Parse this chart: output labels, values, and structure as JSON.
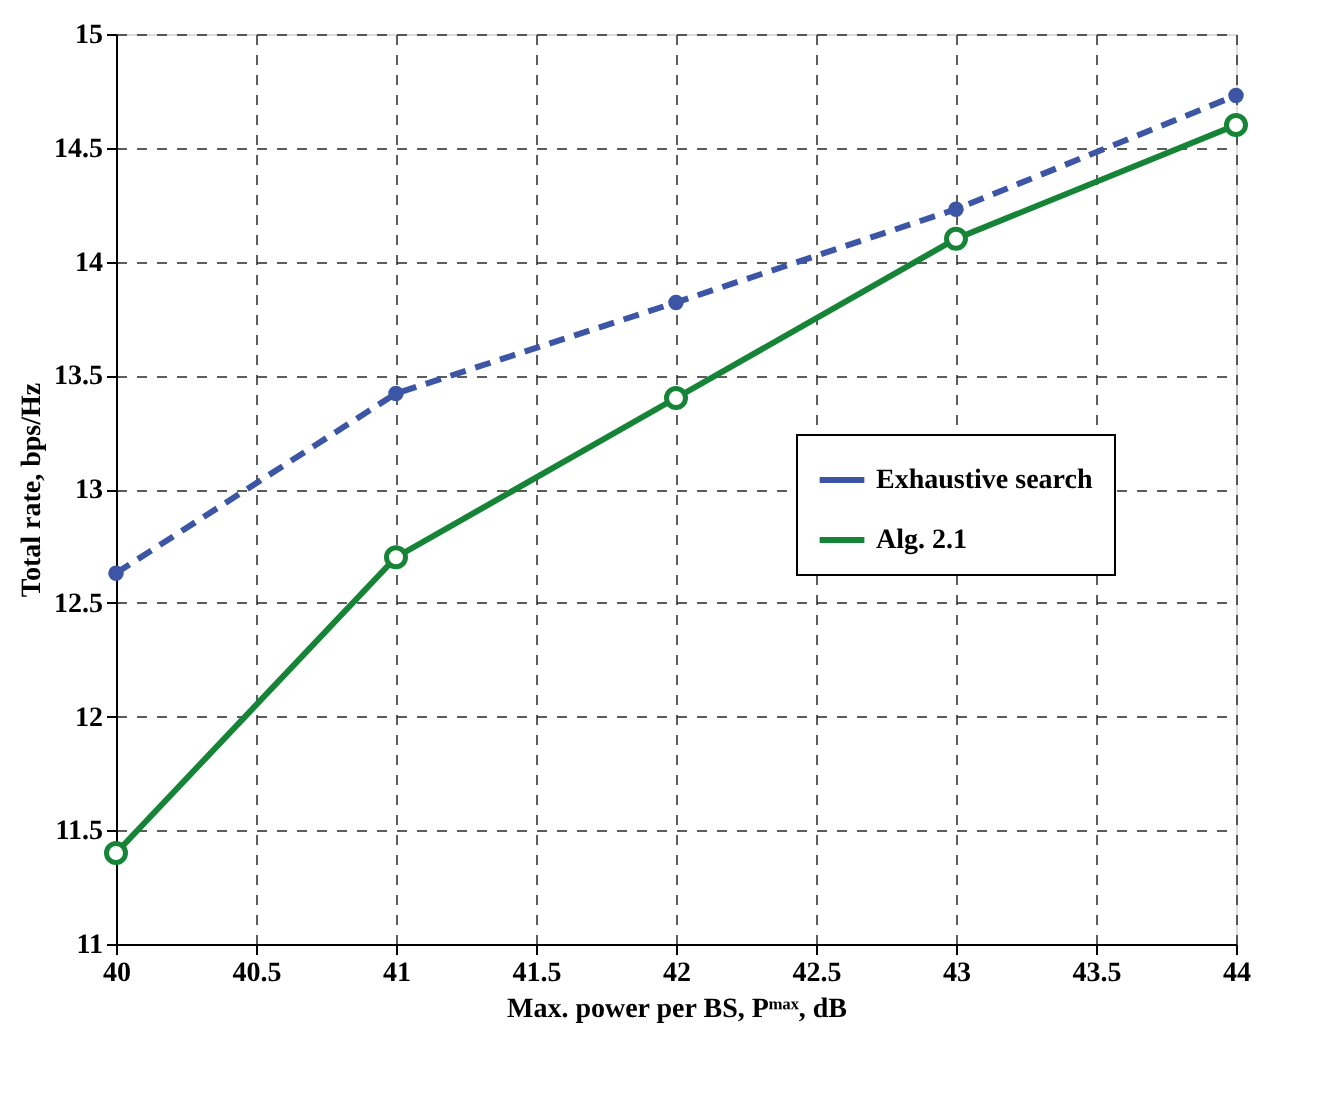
{
  "chart_data": {
    "type": "line",
    "xlabel": "Max. power per BS, Pᵐᵃˣ, dB",
    "ylabel": "Total rate, bps/Hz",
    "x": [
      40,
      41,
      42,
      43,
      44
    ],
    "series": [
      {
        "name": "Exhaustive search",
        "color": "#3d55a5",
        "values": [
          12.63,
          13.42,
          13.82,
          14.23,
          14.73
        ],
        "line_style": "dashed",
        "marker": "circle"
      },
      {
        "name": "Alg. 2.1",
        "color": "#168437",
        "values": [
          11.4,
          12.7,
          13.4,
          14.1,
          14.6
        ],
        "line_style": "solid",
        "marker": "circle"
      }
    ],
    "xlim": [
      40,
      44
    ],
    "xticks": [
      40,
      40.5,
      41,
      41.5,
      42,
      42.5,
      43,
      43.5,
      44
    ],
    "ylim": [
      11,
      15
    ],
    "yticks": [
      11,
      11.5,
      12,
      12.5,
      13,
      13.5,
      14,
      14.5,
      15
    ],
    "grid": true,
    "legend": "right"
  }
}
